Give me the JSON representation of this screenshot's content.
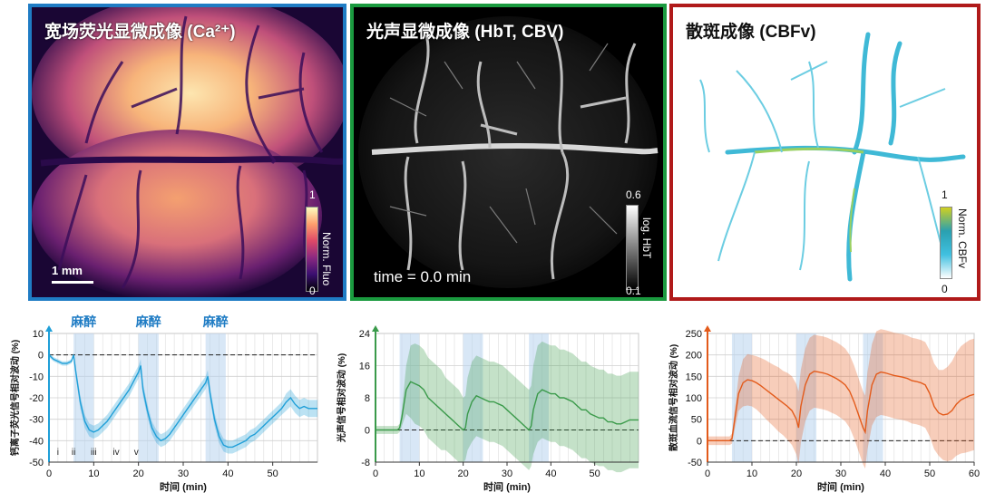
{
  "panels": {
    "calcium": {
      "title": "宽场荧光显微成像 (Ca²⁺)",
      "scalebar_label": "1 mm",
      "colorbar_max": "1",
      "colorbar_min": "0",
      "colorbar_label": "Norm. Fluo",
      "border_color": "#1f7cc4"
    },
    "photoacoustic": {
      "title": "光声显微成像 (HbT, CBV)",
      "time_label": "time = 0.0 min",
      "colorbar_max": "0.6",
      "colorbar_min": "0.1",
      "colorbar_label": "log. HbT",
      "border_color": "#1a9a3f"
    },
    "speckle": {
      "title": "散斑成像 (CBFv)",
      "colorbar_max": "1",
      "colorbar_min": "0",
      "colorbar_label": "Norm. CBFv",
      "border_color": "#b01a1a"
    }
  },
  "anesthesia_label": "麻醉",
  "chart_data": [
    {
      "type": "line",
      "xlabel": "时间 (min)",
      "ylabel": "钙离子荧光信号相对波动 (%)",
      "xlim": [
        0,
        60
      ],
      "ylim": [
        -50,
        10
      ],
      "xticks": [
        0,
        10,
        20,
        30,
        40,
        50
      ],
      "yticks": [
        10,
        0,
        -10,
        -20,
        -30,
        -40,
        -50
      ],
      "anesthesia_bands": [
        [
          5.5,
          10
        ],
        [
          20,
          24.5
        ],
        [
          35,
          39.5
        ]
      ],
      "stage_labels": [
        "i",
        "ii",
        "iii",
        "iv",
        "v"
      ],
      "stage_x": [
        2,
        5.5,
        10,
        15,
        19.5
      ],
      "color": "#1f9fd8",
      "series": [
        {
          "x": [
            0,
            1,
            2,
            3,
            4,
            5,
            5.5,
            6,
            7,
            8,
            9,
            10,
            11,
            12,
            13,
            14,
            15,
            16,
            17,
            18,
            19,
            20,
            20.5,
            21,
            22,
            23,
            24,
            25,
            26,
            27,
            28,
            29,
            30,
            31,
            32,
            33,
            34,
            35,
            35.5,
            36,
            37,
            38,
            39,
            40,
            41,
            42,
            43,
            44,
            45,
            46,
            47,
            48,
            49,
            50,
            51,
            52,
            53,
            54,
            55,
            56,
            57,
            58,
            59,
            60
          ],
          "y": [
            0,
            -2,
            -3,
            -4,
            -4,
            -3,
            0,
            -8,
            -22,
            -31,
            -35,
            -36,
            -35,
            -33,
            -31,
            -28,
            -25,
            -22,
            -19,
            -16,
            -12,
            -8,
            -5,
            -16,
            -26,
            -34,
            -38,
            -40,
            -39,
            -37,
            -34,
            -31,
            -28,
            -25,
            -22,
            -19,
            -16,
            -13,
            -10,
            -18,
            -30,
            -38,
            -42,
            -43,
            -43,
            -42,
            -41,
            -40,
            -38,
            -37,
            -35,
            -33,
            -31,
            -29,
            -27,
            -25,
            -22,
            -20,
            -23,
            -25,
            -24,
            -25,
            -25,
            -25
          ],
          "band_half_width": [
            1,
            1,
            1,
            1,
            1,
            1,
            1,
            2,
            3,
            3,
            3,
            3,
            3,
            3,
            3,
            3,
            3,
            3,
            3,
            3,
            3,
            3,
            3,
            3,
            3,
            3,
            3,
            3,
            3,
            3,
            3,
            3,
            3,
            3,
            3,
            3,
            3,
            3,
            3,
            3,
            3,
            3,
            3,
            3,
            3,
            3,
            3,
            3,
            3,
            3,
            3,
            3,
            3,
            3,
            3,
            3,
            4,
            4,
            4,
            4,
            4,
            4,
            4,
            4
          ]
        }
      ]
    },
    {
      "type": "line",
      "xlabel": "时间 (min)",
      "ylabel": "光声信号相对波动 (%)",
      "xlim": [
        0,
        60
      ],
      "ylim": [
        -8,
        24
      ],
      "xticks": [
        0,
        10,
        20,
        30,
        40,
        50
      ],
      "yticks": [
        24,
        16,
        8,
        0,
        -8
      ],
      "anesthesia_bands": [
        [
          5.5,
          10
        ],
        [
          20,
          24.5
        ],
        [
          35,
          39.5
        ]
      ],
      "color": "#3a9a4a",
      "series": [
        {
          "x": [
            0,
            2,
            4,
            5,
            5.5,
            6,
            7,
            8,
            9,
            10,
            11,
            12,
            13,
            14,
            15,
            16,
            17,
            18,
            19,
            20,
            20.5,
            21,
            22,
            23,
            24,
            25,
            26,
            27,
            28,
            29,
            30,
            31,
            32,
            33,
            34,
            35,
            35.5,
            36,
            37,
            38,
            39,
            40,
            41,
            42,
            43,
            44,
            45,
            46,
            47,
            48,
            49,
            50,
            51,
            52,
            53,
            54,
            55,
            56,
            57,
            58,
            59,
            60
          ],
          "y": [
            0,
            0,
            0,
            0,
            0.5,
            3,
            10,
            12,
            11.5,
            11,
            10,
            8,
            7,
            6,
            5,
            4,
            3,
            2,
            1,
            0,
            0.5,
            4,
            7,
            8.5,
            8,
            7.5,
            7,
            7,
            6.5,
            6,
            5,
            4,
            3,
            2,
            1,
            0,
            1,
            5,
            9,
            10,
            9.5,
            9,
            9,
            8,
            8,
            7.5,
            7,
            6,
            5,
            5,
            4,
            3.5,
            3,
            3,
            2,
            2,
            1.5,
            1.5,
            2,
            2.5,
            2.5,
            2.5
          ],
          "band_half_width": [
            1,
            1,
            1,
            1,
            1,
            2,
            6,
            9,
            10,
            10,
            10,
            10,
            10,
            10,
            10,
            9,
            9,
            9,
            9,
            8,
            8,
            9,
            10,
            10,
            10,
            10,
            10,
            10,
            10,
            10,
            10,
            10,
            10,
            10,
            10,
            10,
            10,
            11,
            12,
            12,
            12,
            12,
            12,
            12,
            12,
            12,
            12,
            12,
            12,
            12,
            12,
            12,
            12,
            12,
            12,
            12,
            12,
            12,
            12,
            12,
            12,
            12
          ]
        }
      ]
    },
    {
      "type": "line",
      "xlabel": "时间 (min)",
      "ylabel": "散斑血流信号相对波动 (%)",
      "xlim": [
        0,
        60
      ],
      "ylim": [
        -50,
        250
      ],
      "xticks": [
        0,
        10,
        20,
        30,
        40,
        50,
        60
      ],
      "yticks": [
        250,
        200,
        150,
        100,
        50,
        0,
        -50
      ],
      "anesthesia_bands": [
        [
          5.5,
          10
        ],
        [
          20,
          24.5
        ],
        [
          35,
          39.5
        ]
      ],
      "color": "#e35a1a",
      "series": [
        {
          "x": [
            0,
            2,
            4,
            5,
            5.5,
            6,
            7,
            8,
            9,
            10,
            11,
            12,
            13,
            14,
            15,
            16,
            17,
            18,
            19,
            20,
            20.5,
            21,
            22,
            23,
            24,
            25,
            26,
            27,
            28,
            29,
            30,
            31,
            32,
            33,
            34,
            35,
            35.5,
            36,
            37,
            38,
            39,
            40,
            41,
            42,
            43,
            44,
            45,
            46,
            47,
            48,
            49,
            50,
            51,
            52,
            53,
            54,
            55,
            56,
            57,
            58,
            59,
            60
          ],
          "y": [
            0,
            0,
            0,
            0,
            5,
            40,
            110,
            135,
            142,
            140,
            135,
            128,
            120,
            112,
            104,
            96,
            88,
            80,
            70,
            50,
            30,
            80,
            130,
            155,
            162,
            160,
            158,
            155,
            150,
            145,
            138,
            130,
            115,
            90,
            60,
            30,
            20,
            70,
            130,
            155,
            160,
            158,
            155,
            152,
            150,
            148,
            145,
            140,
            138,
            135,
            130,
            110,
            80,
            65,
            60,
            62,
            70,
            85,
            95,
            100,
            105,
            108
          ],
          "band_half_width": [
            10,
            10,
            10,
            10,
            12,
            20,
            40,
            55,
            60,
            60,
            62,
            65,
            68,
            70,
            72,
            75,
            75,
            78,
            80,
            82,
            85,
            85,
            85,
            85,
            85,
            85,
            85,
            85,
            85,
            85,
            85,
            85,
            85,
            85,
            85,
            85,
            85,
            90,
            95,
            100,
            100,
            100,
            100,
            100,
            100,
            100,
            100,
            100,
            100,
            100,
            100,
            100,
            100,
            100,
            105,
            110,
            115,
            120,
            125,
            128,
            130,
            130
          ]
        }
      ]
    }
  ]
}
